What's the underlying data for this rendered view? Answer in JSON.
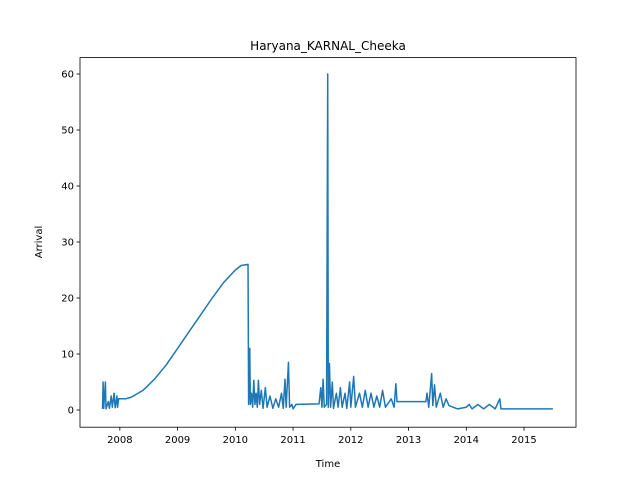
{
  "chart_data": {
    "type": "line",
    "title": "Haryana_KARNAL_Cheeka",
    "xlabel": "Time",
    "ylabel": "Arrival",
    "x": [
      2007.7,
      2007.71,
      2007.72,
      2007.75,
      2007.76,
      2007.8,
      2007.82,
      2007.85,
      2007.87,
      2007.9,
      2007.92,
      2007.95,
      2007.96,
      2007.98,
      2008.1,
      2008.2,
      2008.4,
      2008.6,
      2008.8,
      2009.0,
      2009.2,
      2009.4,
      2009.6,
      2009.8,
      2010.0,
      2010.1,
      2010.22,
      2010.23,
      2010.25,
      2010.26,
      2010.28,
      2010.3,
      2010.32,
      2010.34,
      2010.36,
      2010.38,
      2010.4,
      2010.42,
      2010.45,
      2010.48,
      2010.52,
      2010.55,
      2010.6,
      2010.65,
      2010.7,
      2010.75,
      2010.8,
      2010.83,
      2010.86,
      2010.88,
      2010.92,
      2010.94,
      2010.98,
      2011.0,
      2011.05,
      2011.45,
      2011.48,
      2011.5,
      2011.52,
      2011.54,
      2011.58,
      2011.6,
      2011.61,
      2011.63,
      2011.65,
      2011.68,
      2011.7,
      2011.75,
      2011.78,
      2011.82,
      2011.85,
      2011.9,
      2011.93,
      2011.98,
      2012.0,
      2012.05,
      2012.08,
      2012.15,
      2012.2,
      2012.25,
      2012.3,
      2012.35,
      2012.4,
      2012.45,
      2012.5,
      2012.55,
      2012.6,
      2012.7,
      2012.75,
      2012.78,
      2012.8,
      2013.3,
      2013.32,
      2013.35,
      2013.4,
      2013.42,
      2013.45,
      2013.48,
      2013.55,
      2013.6,
      2013.65,
      2013.7,
      2013.85,
      2014.0,
      2014.05,
      2014.1,
      2014.2,
      2014.3,
      2014.4,
      2014.5,
      2014.58,
      2014.6,
      2015.5
    ],
    "series": [
      {
        "name": "Arrival",
        "color": "#1f77b4",
        "values": [
          0.2,
          5,
          0.3,
          5,
          0.2,
          1.5,
          0.3,
          2.5,
          0.5,
          3,
          0.4,
          2.5,
          0.5,
          2,
          2.0,
          2.3,
          3.5,
          5.5,
          8,
          11,
          14,
          17,
          20,
          22.8,
          25,
          25.8,
          26,
          1,
          11,
          1,
          3,
          0.5,
          5.3,
          1,
          3,
          0.5,
          5.3,
          1,
          3.5,
          0.3,
          4,
          0.5,
          2.5,
          0.3,
          2,
          0.5,
          3,
          0.3,
          5.5,
          0.5,
          8.5,
          0.5,
          1,
          0.2,
          1,
          1.1,
          4,
          0.5,
          5.5,
          0.5,
          1,
          60,
          0.5,
          8.3,
          0.5,
          5,
          0.3,
          3,
          0.5,
          4,
          0.5,
          3,
          0.3,
          5,
          0.5,
          6,
          0.5,
          3,
          0.5,
          3.5,
          0.5,
          3,
          0.5,
          2.5,
          0.5,
          3.5,
          0.5,
          2,
          0.5,
          4.7,
          1.5,
          1.5,
          3,
          0.5,
          6.5,
          0.8,
          4.5,
          0.5,
          3,
          0.5,
          2,
          0.8,
          0.2,
          0.5,
          1,
          0.2,
          1,
          0.2,
          1,
          0.2,
          2,
          0.2,
          0.2
        ]
      }
    ],
    "xlim": [
      2007.31,
      2015.9
    ],
    "xticks": [
      2008,
      2009,
      2010,
      2011,
      2012,
      2013,
      2014,
      2015
    ],
    "ylim": [
      -3.07,
      62.93
    ],
    "yticks": [
      0,
      10,
      20,
      30,
      40,
      50,
      60
    ]
  }
}
